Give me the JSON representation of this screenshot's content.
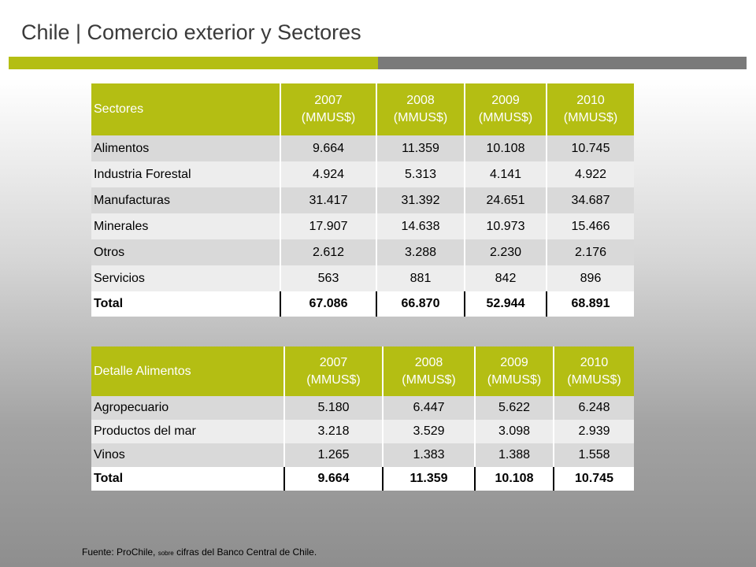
{
  "title": "Chile | Comercio exterior y Sectores",
  "sectores": {
    "headers": [
      "Sectores",
      "2007\n(MMUS$)",
      "2008\n(MMUS$)",
      "2009\n(MMUS$)",
      "2010\n(MMUS$)"
    ],
    "rows": [
      [
        "Alimentos",
        "9.664",
        "11.359",
        "10.108",
        "10.745"
      ],
      [
        "Industria Forestal",
        "4.924",
        "5.313",
        "4.141",
        "4.922"
      ],
      [
        "Manufacturas",
        "31.417",
        "31.392",
        "24.651",
        "34.687"
      ],
      [
        "Minerales",
        "17.907",
        "14.638",
        "10.973",
        "15.466"
      ],
      [
        "Otros",
        "2.612",
        "3.288",
        "2.230",
        "2.176"
      ],
      [
        "Servicios",
        "563",
        "881",
        "842",
        "896"
      ]
    ],
    "total": [
      "Total",
      "67.086",
      "66.870",
      "52.944",
      "68.891"
    ]
  },
  "alimentos": {
    "headers": [
      "Detalle Alimentos",
      "2007\n(MMUS$)",
      "2008\n(MMUS$)",
      "2009\n(MMUS$)",
      "2010\n(MMUS$)"
    ],
    "rows": [
      [
        "Agropecuario",
        "5.180",
        "6.447",
        "5.622",
        "6.248"
      ],
      [
        "Productos del mar",
        "3.218",
        "3.529",
        "3.098",
        "2.939"
      ],
      [
        "Vinos",
        "1.265",
        "1.383",
        "1.388",
        "1.558"
      ]
    ],
    "total": [
      "Total",
      "9.664",
      "11.359",
      "10.108",
      "10.745"
    ]
  },
  "source": {
    "prefix": "Fuente: ProChile,",
    "small": "sobre",
    "suffix": "cifras del Banco Central de Chile."
  },
  "colors": {
    "accent": "#b4be13",
    "rule_gray": "#7a7a7a"
  }
}
